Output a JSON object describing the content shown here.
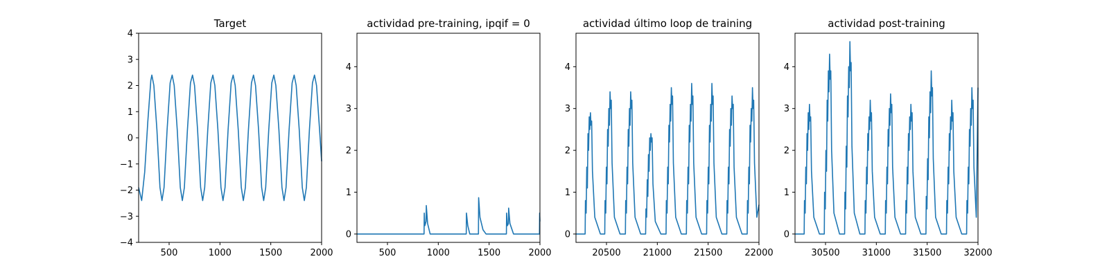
{
  "chart_data": [
    {
      "type": "line",
      "title": "Target",
      "xlim": [
        200,
        2000
      ],
      "ylim": [
        -4,
        4
      ],
      "xticks": [
        500,
        1000,
        1500,
        2000
      ],
      "yticks": [
        -4,
        -3,
        -2,
        -1,
        0,
        1,
        2,
        3,
        4
      ],
      "color": "#1f77b4",
      "series": [
        {
          "x": [
            200,
            230,
            260,
            290,
            320,
            330,
            350,
            380,
            410,
            430,
            450,
            480,
            510,
            530,
            550,
            580,
            610,
            630,
            650,
            680,
            710,
            730,
            750,
            780,
            810,
            830,
            850,
            880,
            910,
            930,
            950,
            980,
            1010,
            1030,
            1050,
            1080,
            1110,
            1130,
            1150,
            1180,
            1210,
            1230,
            1250,
            1280,
            1310,
            1330,
            1350,
            1380,
            1410,
            1430,
            1450,
            1480,
            1510,
            1530,
            1550,
            1580,
            1610,
            1630,
            1650,
            1680,
            1710,
            1730,
            1750,
            1780,
            1810,
            1830,
            1850,
            1880,
            1910,
            1930,
            1950,
            1980,
            2000
          ],
          "y": [
            -1.9,
            -2.4,
            -1.3,
            0.6,
            2.2,
            2.4,
            2.0,
            0.3,
            -1.9,
            -2.4,
            -1.9,
            0.3,
            2.1,
            2.4,
            2.0,
            0.3,
            -1.9,
            -2.4,
            -1.9,
            0.3,
            2.1,
            2.4,
            2.0,
            0.3,
            -1.9,
            -2.4,
            -1.9,
            0.3,
            2.1,
            2.4,
            2.0,
            0.3,
            -1.9,
            -2.4,
            -1.9,
            0.3,
            2.1,
            2.4,
            2.0,
            0.3,
            -1.9,
            -2.4,
            -1.9,
            0.3,
            2.1,
            2.4,
            2.0,
            0.3,
            -1.9,
            -2.4,
            -1.9,
            0.3,
            2.1,
            2.4,
            2.0,
            0.3,
            -1.9,
            -2.4,
            -1.9,
            0.3,
            2.1,
            2.4,
            2.0,
            0.3,
            -1.9,
            -2.4,
            -1.9,
            0.3,
            2.1,
            2.4,
            2.0,
            0.3,
            -0.9
          ]
        }
      ]
    },
    {
      "type": "line",
      "title": "actividad pre-training, ipqif = 0",
      "xlim": [
        200,
        2000
      ],
      "ylim": [
        -0.2,
        4.8
      ],
      "xticks": [
        500,
        1000,
        1500,
        2000
      ],
      "yticks": [
        0,
        1,
        2,
        3,
        4
      ],
      "color": "#1f77b4",
      "series": [
        {
          "x": [
            200,
            860,
            862,
            868,
            880,
            882,
            895,
            920,
            1275,
            1277,
            1290,
            1310,
            1395,
            1397,
            1410,
            1440,
            1470,
            1670,
            1672,
            1680,
            1690,
            1692,
            1705,
            1740,
            1995,
            1997,
            2000
          ],
          "y": [
            0,
            0,
            0.5,
            0.2,
            0.3,
            0.68,
            0.25,
            0,
            0,
            0.5,
            0.2,
            0,
            0,
            0.87,
            0.4,
            0.1,
            0,
            0,
            0.5,
            0.2,
            0.25,
            0.62,
            0.25,
            0,
            0,
            0.5,
            0.3
          ]
        }
      ]
    },
    {
      "type": "line",
      "title": "actividad último loop de training",
      "xlim": [
        20200,
        22000
      ],
      "ylim": [
        -0.2,
        4.8
      ],
      "xticks": [
        20500,
        21000,
        21500,
        22000
      ],
      "yticks": [
        0,
        1,
        2,
        3,
        4
      ],
      "color": "#1f77b4",
      "series": [
        {
          "x": [
            20200,
            20290,
            20293,
            20300,
            20306,
            20312,
            20318,
            20324,
            20330,
            20336,
            20342,
            20348,
            20354,
            20362,
            20385,
            20440,
            20483,
            20486,
            20493,
            20499,
            20505,
            20511,
            20517,
            20523,
            20529,
            20535,
            20541,
            20547,
            20555,
            20578,
            20633,
            20686,
            20689,
            20696,
            20702,
            20708,
            20714,
            20720,
            20726,
            20732,
            20738,
            20744,
            20750,
            20758,
            20781,
            20836,
            20885,
            20888,
            20895,
            20901,
            20907,
            20913,
            20919,
            20925,
            20931,
            20937,
            20943,
            20949,
            20957,
            20980,
            21035,
            21086,
            21089,
            21096,
            21102,
            21108,
            21114,
            21120,
            21126,
            21132,
            21138,
            21144,
            21150,
            21158,
            21181,
            21236,
            21286,
            21289,
            21296,
            21302,
            21308,
            21314,
            21320,
            21326,
            21332,
            21338,
            21344,
            21350,
            21358,
            21381,
            21436,
            21485,
            21488,
            21495,
            21501,
            21507,
            21513,
            21519,
            21525,
            21531,
            21537,
            21543,
            21549,
            21557,
            21580,
            21635,
            21683,
            21686,
            21693,
            21699,
            21705,
            21711,
            21717,
            21723,
            21729,
            21735,
            21741,
            21747,
            21755,
            21778,
            21833,
            21884,
            21887,
            21894,
            21900,
            21906,
            21912,
            21918,
            21924,
            21930,
            21936,
            21942,
            21948,
            21956,
            21979,
            22000
          ],
          "y": [
            0,
            0,
            0.8,
            0.5,
            1.6,
            1.1,
            2.4,
            2.0,
            2.8,
            2.5,
            2.9,
            2.6,
            2.7,
            1.5,
            0.4,
            0,
            0,
            0.8,
            0.5,
            1.6,
            1.2,
            2.5,
            2.1,
            3.0,
            2.6,
            3.4,
            3.0,
            3.2,
            1.7,
            0.4,
            0,
            0,
            0.8,
            0.5,
            1.6,
            1.2,
            2.5,
            2.1,
            3.0,
            2.6,
            3.4,
            3.0,
            3.2,
            1.7,
            0.4,
            0,
            0,
            0.6,
            0.4,
            1.3,
            0.9,
            1.9,
            1.5,
            2.3,
            2.0,
            2.4,
            2.2,
            2.3,
            1.2,
            0.3,
            0,
            0,
            0.8,
            0.5,
            1.6,
            1.2,
            2.6,
            2.2,
            3.1,
            2.7,
            3.5,
            3.1,
            3.3,
            1.7,
            0.4,
            0,
            0,
            0.8,
            0.5,
            1.6,
            1.2,
            2.6,
            2.2,
            3.1,
            2.7,
            3.6,
            3.1,
            3.3,
            1.7,
            0.4,
            0,
            0,
            0.8,
            0.5,
            1.6,
            1.2,
            2.6,
            2.2,
            3.1,
            2.7,
            3.6,
            3.1,
            3.3,
            1.7,
            0.4,
            0,
            0,
            0.8,
            0.5,
            1.6,
            1.2,
            2.5,
            2.1,
            3.0,
            2.6,
            3.3,
            3.0,
            3.1,
            1.6,
            0.4,
            0,
            0,
            0.8,
            0.5,
            1.6,
            1.2,
            2.6,
            2.2,
            3.0,
            2.7,
            3.5,
            3.0,
            3.2,
            1.7,
            0.4,
            0.7
          ]
        }
      ]
    },
    {
      "type": "line",
      "title": "actividad post-training",
      "xlim": [
        30200,
        32000
      ],
      "ylim": [
        -0.2,
        4.8
      ],
      "xticks": [
        30500,
        31000,
        31500,
        32000
      ],
      "yticks": [
        0,
        1,
        2,
        3,
        4
      ],
      "color": "#1f77b4",
      "series": [
        {
          "x": [
            30200,
            30290,
            30293,
            30300,
            30306,
            30312,
            30318,
            30324,
            30330,
            30336,
            30342,
            30348,
            30354,
            30362,
            30385,
            30440,
            30488,
            30491,
            30498,
            30504,
            30510,
            30516,
            30522,
            30528,
            30534,
            30540,
            30546,
            30552,
            30560,
            30583,
            30638,
            30688,
            30691,
            30698,
            30704,
            30710,
            30716,
            30722,
            30728,
            30734,
            30740,
            30746,
            30752,
            30760,
            30783,
            30838,
            30888,
            30891,
            30898,
            30904,
            30910,
            30916,
            30922,
            30928,
            30934,
            30940,
            30946,
            30952,
            30960,
            30983,
            31038,
            31088,
            31091,
            31098,
            31104,
            31110,
            31116,
            31122,
            31128,
            31134,
            31140,
            31146,
            31152,
            31160,
            31183,
            31238,
            31288,
            31291,
            31298,
            31304,
            31310,
            31316,
            31322,
            31328,
            31334,
            31340,
            31346,
            31352,
            31360,
            31383,
            31438,
            31488,
            31491,
            31498,
            31504,
            31510,
            31516,
            31522,
            31528,
            31534,
            31540,
            31546,
            31552,
            31560,
            31583,
            31638,
            31690,
            31693,
            31700,
            31706,
            31712,
            31718,
            31724,
            31730,
            31736,
            31742,
            31748,
            31754,
            31762,
            31785,
            31840,
            31888,
            31891,
            31898,
            31904,
            31910,
            31916,
            31922,
            31928,
            31934,
            31940,
            31946,
            31952,
            31960,
            31983,
            32000
          ],
          "y": [
            0,
            0,
            0.8,
            0.5,
            1.6,
            1.2,
            2.4,
            2.0,
            2.9,
            2.5,
            3.1,
            2.7,
            2.8,
            1.5,
            0.4,
            0,
            0,
            1.0,
            0.6,
            2.0,
            1.5,
            3.2,
            2.7,
            3.9,
            3.4,
            4.3,
            3.7,
            3.9,
            2.0,
            0.5,
            0,
            0,
            1.0,
            0.6,
            2.1,
            1.6,
            3.3,
            2.8,
            4.0,
            3.5,
            4.6,
            3.9,
            4.1,
            2.1,
            0.5,
            0,
            0,
            0.8,
            0.5,
            1.6,
            1.2,
            2.4,
            2.0,
            2.8,
            2.5,
            3.2,
            2.7,
            2.9,
            1.5,
            0.4,
            0,
            0,
            0.8,
            0.5,
            1.6,
            1.2,
            2.5,
            2.1,
            3.0,
            2.6,
            3.35,
            2.9,
            3.1,
            1.6,
            0.4,
            0,
            0,
            0.8,
            0.5,
            1.6,
            1.2,
            2.4,
            2.0,
            2.8,
            2.5,
            3.1,
            2.7,
            2.9,
            1.5,
            0.4,
            0,
            0,
            0.9,
            0.6,
            1.8,
            1.3,
            2.8,
            2.3,
            3.4,
            2.9,
            3.9,
            3.3,
            3.5,
            1.8,
            0.4,
            0,
            0,
            0.8,
            0.5,
            1.6,
            1.2,
            2.4,
            2.0,
            2.8,
            2.5,
            3.2,
            2.7,
            2.9,
            1.5,
            0.4,
            0,
            0,
            0.8,
            0.5,
            1.6,
            1.2,
            2.5,
            2.1,
            3.0,
            2.6,
            3.5,
            3.0,
            3.2,
            1.6,
            0.4,
            3.5
          ]
        }
      ]
    }
  ]
}
